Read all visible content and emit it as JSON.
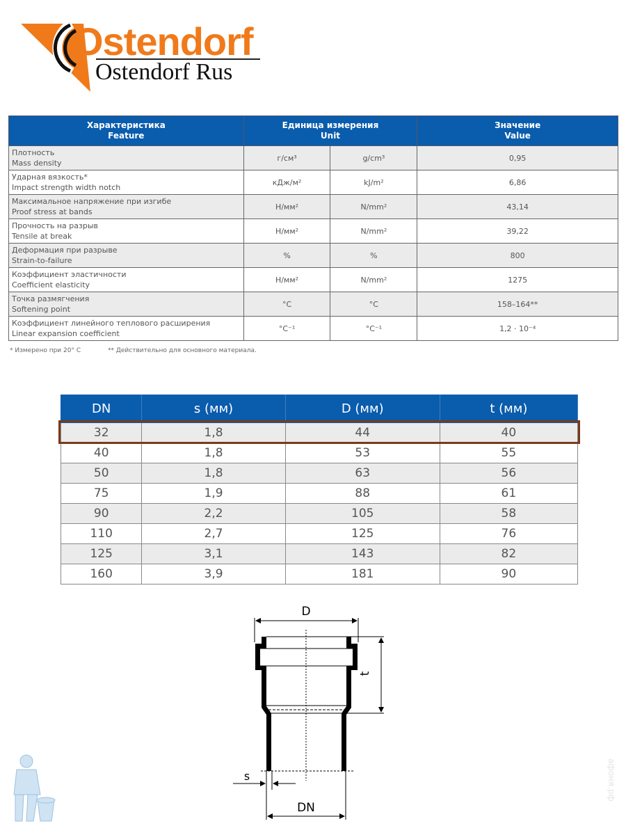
{
  "logo": {
    "brand": "Ostendorf",
    "subtitle": "Ostendorf Rus",
    "colors": {
      "orange": "#f07a1a",
      "black": "#111111"
    }
  },
  "properties_table": {
    "headers": {
      "feature": [
        "Характеристика",
        "Feature"
      ],
      "unit": [
        "Единица измерения",
        "Unit"
      ],
      "value": [
        "Значение",
        "Value"
      ]
    },
    "rows": [
      {
        "ru": "Плотность",
        "en": "Mass density",
        "unit_ru": "г/см³",
        "unit_en": "g/cm³",
        "value": "0,95"
      },
      {
        "ru": "Ударная вязкость*",
        "en": "Impact strength width notch",
        "unit_ru": "кДж/м²",
        "unit_en": "kJ/m²",
        "value": "6,86"
      },
      {
        "ru": "Максимальное напряжение при изгибе",
        "en": "Proof stress at bands",
        "unit_ru": "Н/мм²",
        "unit_en": "N/mm²",
        "value": "43,14"
      },
      {
        "ru": "Прочность на разрыв",
        "en": "Tensile at break",
        "unit_ru": "Н/мм²",
        "unit_en": "N/mm²",
        "value": "39,22"
      },
      {
        "ru": "Деформация при разрыве",
        "en": "Strain-to-failure",
        "unit_ru": "%",
        "unit_en": "%",
        "value": "800"
      },
      {
        "ru": "Коэффициент эластичности",
        "en": "Coefficient elasticity",
        "unit_ru": "Н/мм²",
        "unit_en": "N/mm²",
        "value": "1275"
      },
      {
        "ru": "Точка размягчения",
        "en": "Softening point",
        "unit_ru": "°C",
        "unit_en": "°C",
        "value": "158–164**"
      },
      {
        "ru": "Коэффициент линейного теплового расширения",
        "en": "Linear expansion coefficient",
        "unit_ru": "°C⁻¹",
        "unit_en": "°C⁻¹",
        "value": "1,2 · 10⁻⁴"
      }
    ],
    "footnotes": [
      "* Измерено при 20° C",
      "** Действительно для основного материала."
    ],
    "header_color": "#0a5cad"
  },
  "sizes_table": {
    "headers": [
      "DN",
      "s (мм)",
      "D (мм)",
      "t (мм)"
    ],
    "rows": [
      [
        "32",
        "1,8",
        "44",
        "40"
      ],
      [
        "40",
        "1,8",
        "53",
        "55"
      ],
      [
        "50",
        "1,8",
        "63",
        "56"
      ],
      [
        "75",
        "1,9",
        "88",
        "61"
      ],
      [
        "90",
        "2,2",
        "105",
        "58"
      ],
      [
        "110",
        "2,7",
        "125",
        "76"
      ],
      [
        "125",
        "3,1",
        "143",
        "82"
      ],
      [
        "160",
        "3,9",
        "181",
        "90"
      ]
    ],
    "highlighted_row": 0,
    "highlight_color": "#7a3a1a"
  },
  "diagram": {
    "labels": {
      "D": "D",
      "t": "t",
      "s": "s",
      "DN": "DN"
    }
  },
  "watermark": "афоня.рф"
}
